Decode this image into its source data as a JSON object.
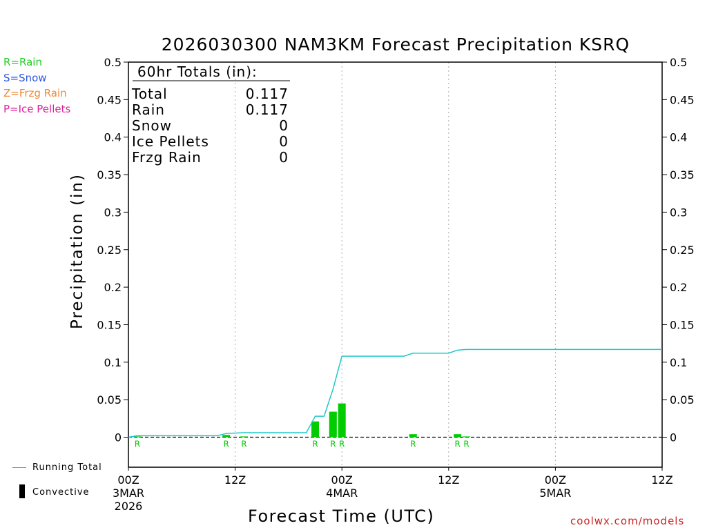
{
  "title": "2026030300 NAM3KM Forecast Precipitation KSRQ",
  "type_legend": [
    {
      "label": "R=Rain",
      "color": "#22cc22"
    },
    {
      "label": "S=Snow",
      "color": "#3355dd"
    },
    {
      "label": "Z=Frzg Rain",
      "color": "#ee8833"
    },
    {
      "label": "P=Ice Pellets",
      "color": "#dd2299"
    }
  ],
  "bottom_legend": {
    "running_total": "Running Total",
    "convective": "Convective"
  },
  "credit": "coolwx.com/models",
  "colors": {
    "bar": "#00cc00",
    "running_total": "#1ec8c8",
    "type_letter": "#00cc00",
    "grid": "#aaaaaa"
  },
  "chart_data": {
    "type": "bar",
    "title": "2026030300 NAM3KM Forecast Precipitation KSRQ",
    "xlabel": "Forecast Time (UTC)",
    "ylabel": "Precipitation (in)",
    "ylim": [
      -0.04,
      0.5
    ],
    "yticks": [
      0,
      0.05,
      0.1,
      0.15,
      0.2,
      0.25,
      0.3,
      0.35,
      0.4,
      0.45,
      0.5
    ],
    "ytick_labels": [
      "0",
      "0.05",
      "0.1",
      "0.15",
      "0.2",
      "0.25",
      "0.3",
      "0.35",
      "0.4",
      "0.45",
      "0.5"
    ],
    "xlim": [
      0,
      60
    ],
    "xticks": [
      {
        "hour": 0,
        "label": "00Z",
        "sub": "3MAR",
        "sub2": "2026"
      },
      {
        "hour": 12,
        "label": "12Z",
        "sub": "",
        "sub2": ""
      },
      {
        "hour": 24,
        "label": "00Z",
        "sub": "4MAR",
        "sub2": ""
      },
      {
        "hour": 36,
        "label": "12Z",
        "sub": "",
        "sub2": ""
      },
      {
        "hour": 48,
        "label": "00Z",
        "sub": "5MAR",
        "sub2": ""
      },
      {
        "hour": 60,
        "label": "12Z",
        "sub": "",
        "sub2": ""
      }
    ],
    "bars": [
      {
        "hour": 1,
        "value": 0.001,
        "type": "R"
      },
      {
        "hour": 11,
        "value": 0.003,
        "type": "R"
      },
      {
        "hour": 13,
        "value": 0.001,
        "type": "R"
      },
      {
        "hour": 21,
        "value": 0.021,
        "type": "R"
      },
      {
        "hour": 23,
        "value": 0.034,
        "type": "R"
      },
      {
        "hour": 24,
        "value": 0.045,
        "type": "R"
      },
      {
        "hour": 32,
        "value": 0.004,
        "type": "R"
      },
      {
        "hour": 37,
        "value": 0.004,
        "type": "R"
      },
      {
        "hour": 38,
        "value": 0.001,
        "type": "R"
      }
    ],
    "running_total": {
      "hours": [
        0,
        1,
        10,
        11,
        13,
        20,
        21,
        22,
        23,
        24,
        31,
        32,
        36,
        37,
        38,
        60
      ],
      "values": [
        0,
        0.002,
        0.002,
        0.005,
        0.006,
        0.006,
        0.028,
        0.028,
        0.064,
        0.108,
        0.108,
        0.112,
        0.112,
        0.116,
        0.117,
        0.117
      ]
    },
    "totals": {
      "header": "60hr Totals (in):",
      "rows": [
        {
          "label": "Total",
          "value": "0.117"
        },
        {
          "label": "Rain",
          "value": "0.117"
        },
        {
          "label": "Snow",
          "value": "0"
        },
        {
          "label": "Ice Pellets",
          "value": "0"
        },
        {
          "label": "Frzg Rain",
          "value": "0"
        }
      ]
    }
  }
}
